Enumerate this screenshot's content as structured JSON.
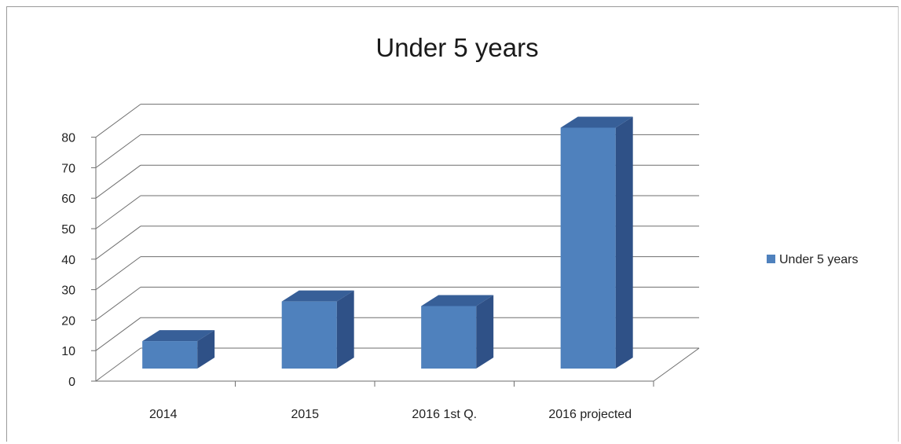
{
  "chart_data": {
    "type": "bar",
    "title": "Under 5 years",
    "categories": [
      "2014",
      "2015",
      "2016 1st Q.",
      "2016 projected"
    ],
    "series": [
      {
        "name": "Under 5 years",
        "values": [
          9,
          22,
          20.5,
          79
        ]
      }
    ],
    "ylim": [
      0,
      80
    ],
    "yticks": [
      0,
      10,
      20,
      30,
      40,
      50,
      60,
      70,
      80
    ],
    "grid": true,
    "legend_position": "right",
    "bar_color": "#4f81bd",
    "bar_side_color": "#2f5187",
    "bar_top_color": "#375f98"
  }
}
